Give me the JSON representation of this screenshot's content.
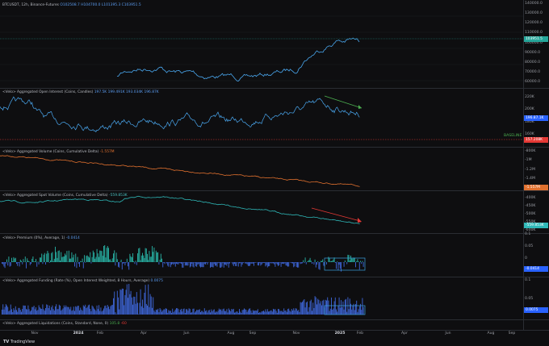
{
  "panes": {
    "price": {
      "legend_symbol": "BTCUSDT, 12h, Binance-Futures",
      "legend_ohlc": "O102508.7 H104700.0 L101395.3 C103951.5",
      "current_badge": "103951.5",
      "axis_ticks": [
        "140000.0",
        "130000.0",
        "120000.0",
        "110000.0",
        "100000.0",
        "90000.0",
        "80000.0",
        "70000.0",
        "60000.0"
      ]
    },
    "open_interest": {
      "legend_title": "<Velo> Aggregated Open Interest (Coins, Candles)",
      "legend_values": "197.5K  199.491K  193.034K  196.87K",
      "current_badge": "196.87.1K",
      "baseline_badge": "157.208K",
      "baseline_label": "BASELINE",
      "axis_ticks": [
        "220K",
        "200K",
        "180K",
        "160K"
      ]
    },
    "volume": {
      "legend_title": "<Velo> Aggregated Volume (Coins, Cumulative Delta)",
      "legend_value": "-1.557M",
      "current_badge": "-1.557M",
      "axis_ticks": [
        "-800K",
        "-1M",
        "-1.2M",
        "-1.4M"
      ]
    },
    "spot_volume": {
      "legend_title": "<Velo> Aggregated Spot Volume (Coins, Cumulative Delta)",
      "legend_value": "-559.853K",
      "current_badge": "-559.853K",
      "axis_ticks": [
        "-400K",
        "-450K",
        "-500K",
        "-550K",
        "-600K"
      ]
    },
    "premium": {
      "legend_title": "<Velo> Premium (0%), Average, 1)",
      "legend_value": "-0.0414",
      "current_badge": "-0.0414",
      "axis_ticks": [
        "0.1",
        "0.05",
        "0",
        "-0.05"
      ]
    },
    "funding": {
      "legend_title": "<Velo> Aggregated Funding (Rate (%), Open Interest Weighted, 8 Hours, Average)",
      "legend_value": "0.0075",
      "current_badge": "0.0075",
      "axis_ticks": [
        "0.1",
        "0.05"
      ]
    },
    "liquidations": {
      "legend_title": "<Velo> Aggregated Liquidations (Coins, Standard, None, 0)",
      "legend_v1": "105.8",
      "legend_v2": "-60"
    }
  },
  "time_axis": {
    "ticks": [
      {
        "label": "Nov",
        "bold": false
      },
      {
        "label": "2024",
        "bold": true
      },
      {
        "label": "Feb",
        "bold": false
      },
      {
        "label": "Apr",
        "bold": false
      },
      {
        "label": "Jun",
        "bold": false
      },
      {
        "label": "Aug",
        "bold": false
      },
      {
        "label": "Sep",
        "bold": false
      },
      {
        "label": "Nov",
        "bold": false
      },
      {
        "label": "2025",
        "bold": true
      },
      {
        "label": "Feb",
        "bold": false
      },
      {
        "label": "Apr",
        "bold": false
      },
      {
        "label": "Jun",
        "bold": false
      },
      {
        "label": "Aug",
        "bold": false
      },
      {
        "label": "Sep",
        "bold": false
      }
    ]
  },
  "footer": {
    "brand": "TradingView"
  },
  "colors": {
    "price": "#4aa8f0",
    "oi": "#4aa8f0",
    "volume": "#e0702e",
    "spot": "#2fb8b8",
    "premium_pos": "#26a69a",
    "premium_neg": "#3a5fc8",
    "funding": "#3a5fc8",
    "arrow_green": "#4caf50",
    "arrow_red": "#e53935"
  }
}
